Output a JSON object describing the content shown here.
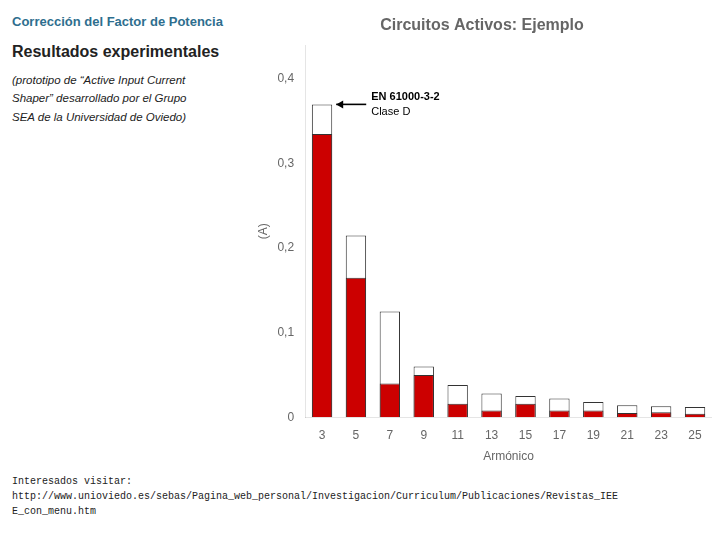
{
  "chart_data": {
    "type": "bar",
    "title": "Circuitos Activos: Ejemplo",
    "subtitle": "Resultados experimentales",
    "categories": [
      3,
      5,
      7,
      9,
      11,
      13,
      15,
      17,
      19,
      21,
      23,
      25
    ],
    "series": [
      {
        "color": "#FFFFFF",
        "values": [
          0.37,
          0.215,
          0.125,
          0.06,
          0.038,
          0.028,
          0.025,
          0.022,
          0.018,
          0.014,
          0.013,
          0.012
        ]
      },
      {
        "color": "#CC0000",
        "values": [
          0.335,
          0.165,
          0.04,
          0.05,
          0.016,
          0.008,
          0.016,
          0.008,
          0.008,
          0.005,
          0.006,
          0.004
        ]
      }
    ],
    "x_label": "Armónico",
    "y_label": "(A)",
    "ylim": [
      0,
      0.44
    ],
    "yticks": [
      0,
      {
        "value": 0.1,
        "label": "0,1"
      },
      {
        "value": 0.2,
        "label": "0,2"
      },
      {
        "value": 0.3,
        "label": "0,3"
      },
      {
        "value": 0.4,
        "label": "0,4"
      }
    ],
    "grid": false,
    "legend": false,
    "stacked": false,
    "annotations": [
      "EN 61000-3-2",
      "Clase D",
      "Corrección del Factor de Potencia",
      "(prototipo de “Active Input Current",
      "Shaper” desarrollado por el Grupo",
      "SEA de la Universidad de Oviedo)",
      "Interesados visitar:",
      "http://www.unioviedo.es/sebas/Pagina_web_personal/Investigacion/Curriculum/Publicaciones/Revistas_IEE",
      "E_con_menu.htm"
    ]
  }
}
